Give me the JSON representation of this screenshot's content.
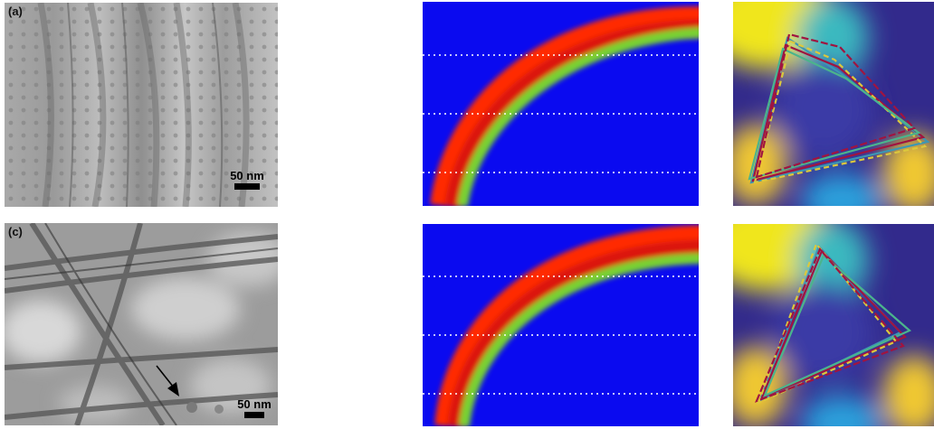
{
  "figure": {
    "panels": [
      {
        "id": "a",
        "label": "(a)",
        "kind": "micrograph",
        "scalebar": "50 nm",
        "arrow": false
      },
      {
        "id": "b",
        "kind": "simulation-map",
        "colormap": "jet"
      },
      {
        "id": "b2",
        "kind": "trajectory-map",
        "colormap": "parula"
      },
      {
        "id": "c",
        "label": "(c)",
        "kind": "micrograph",
        "scalebar": "50 nm",
        "arrow": true
      },
      {
        "id": "d",
        "kind": "simulation-map",
        "colormap": "jet"
      },
      {
        "id": "d2",
        "kind": "trajectory-map",
        "colormap": "parula"
      }
    ],
    "colors": {
      "jet_background": "#0a0af0",
      "jet_ring_outer": "#d21414",
      "jet_ring_core": "#78d232",
      "parula_high": "#f0e61e",
      "parula_low": "#322a8c",
      "trajectory_red": "#a01440",
      "trajectory_teal": "#3c96b4",
      "trajectory_yellow": "#dcc83c"
    }
  }
}
